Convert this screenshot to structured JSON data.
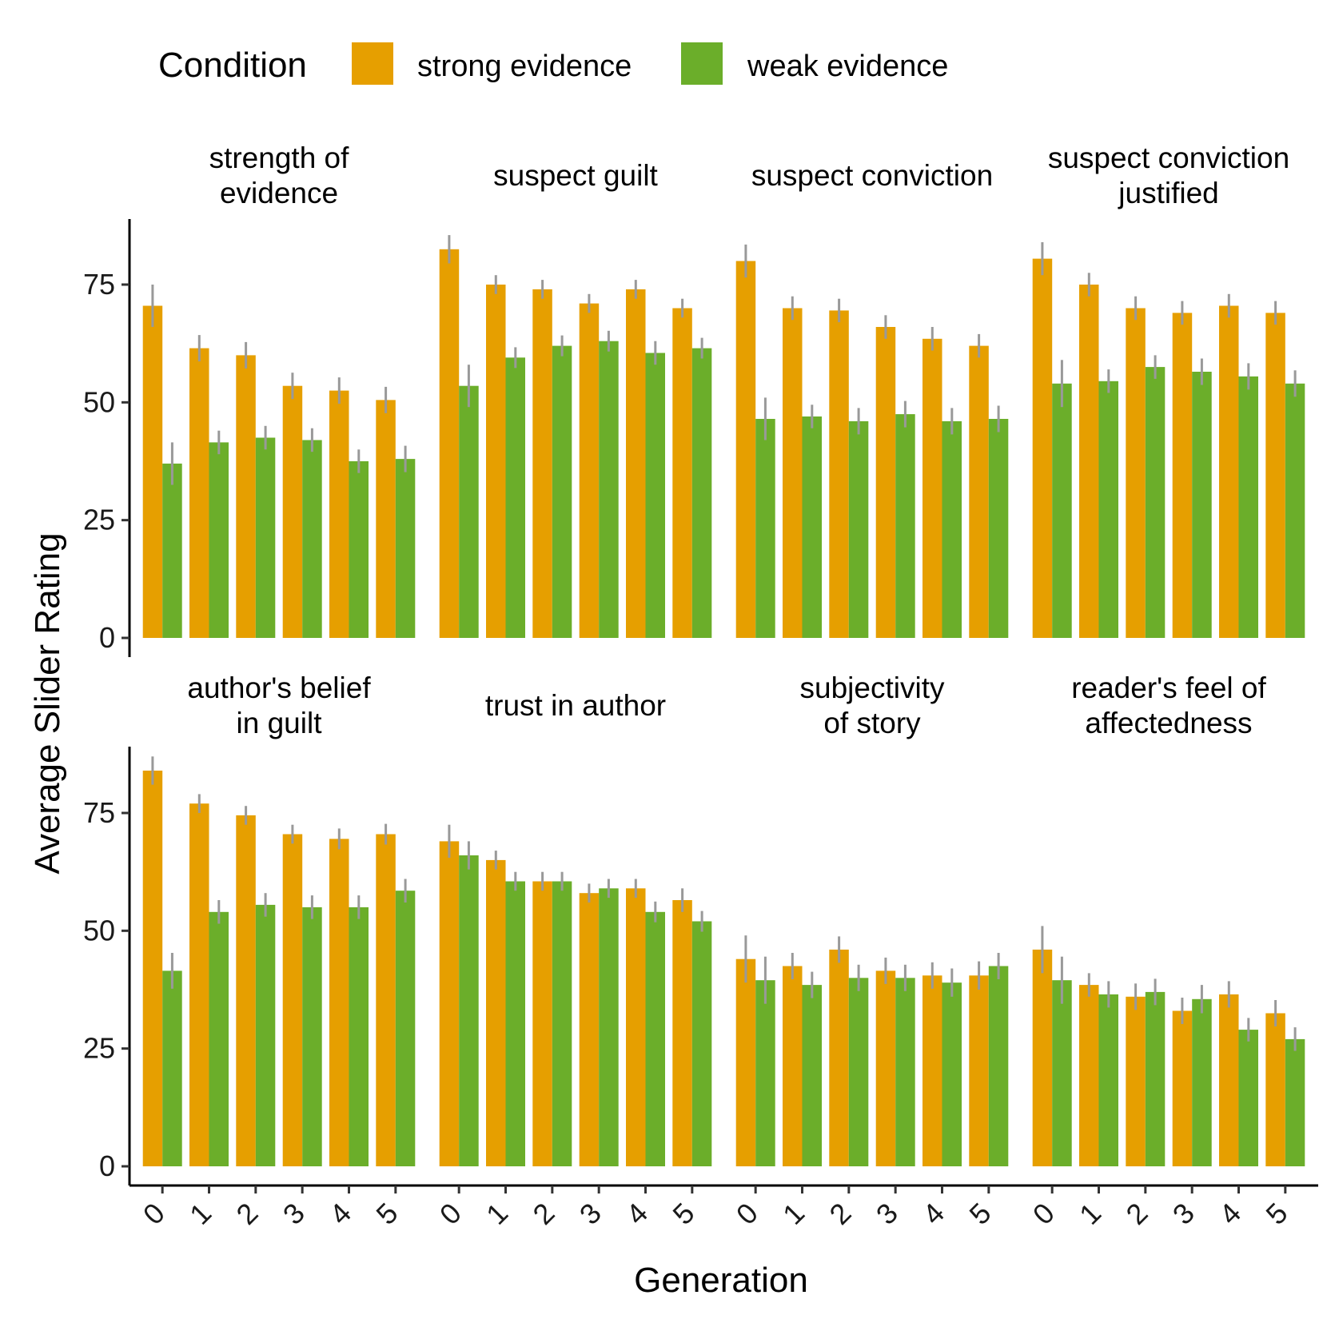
{
  "legend": {
    "title": "Condition",
    "items": [
      {
        "label": "strong evidence",
        "color": "#E69F00"
      },
      {
        "label": "weak evidence",
        "color": "#6BAE2A"
      }
    ]
  },
  "axes": {
    "ylabel": "Average Slider Rating",
    "xlabel": "Generation",
    "yticks": [
      "0",
      "25",
      "50",
      "75"
    ],
    "xticks": [
      "0",
      "1",
      "2",
      "3",
      "4",
      "5"
    ]
  },
  "chart_data": {
    "type": "bar",
    "layout": "facet grid, 2 rows x 4 columns",
    "grid": false,
    "legend_position": "top",
    "errorbar_color": "#999999",
    "ylim": [
      0,
      90
    ],
    "categories": [
      "0",
      "1",
      "2",
      "3",
      "4",
      "5"
    ],
    "panels": [
      {
        "title": [
          "strength of",
          "evidence"
        ],
        "series": [
          {
            "name": "strong evidence",
            "values": [
              70.5,
              61.5,
              60,
              53.5,
              52.5,
              50.5
            ],
            "err": [
              4.5,
              2.8,
              2.8,
              2.8,
              2.8,
              2.8
            ]
          },
          {
            "name": "weak evidence",
            "values": [
              37,
              41.5,
              42.5,
              42,
              37.5,
              38
            ],
            "err": [
              4.5,
              2.5,
              2.5,
              2.5,
              2.5,
              2.8
            ]
          }
        ]
      },
      {
        "title": [
          "suspect guilt"
        ],
        "series": [
          {
            "name": "strong evidence",
            "values": [
              82.5,
              75,
              74,
              71,
              74,
              70
            ],
            "err": [
              3,
              2,
              2,
              2,
              2,
              2
            ]
          },
          {
            "name": "weak evidence",
            "values": [
              53.5,
              59.5,
              62,
              63,
              60.5,
              61.5
            ],
            "err": [
              4.5,
              2.2,
              2.2,
              2.2,
              2.5,
              2.2
            ]
          }
        ]
      },
      {
        "title": [
          "suspect conviction"
        ],
        "series": [
          {
            "name": "strong evidence",
            "values": [
              80,
              70,
              69.5,
              66,
              63.5,
              62
            ],
            "err": [
              3.5,
              2.5,
              2.5,
              2.5,
              2.5,
              2.5
            ]
          },
          {
            "name": "weak evidence",
            "values": [
              46.5,
              47,
              46,
              47.5,
              46,
              46.5
            ],
            "err": [
              4.5,
              2.5,
              2.8,
              2.8,
              2.8,
              2.8
            ]
          }
        ]
      },
      {
        "title": [
          "suspect conviction",
          "justified"
        ],
        "series": [
          {
            "name": "strong evidence",
            "values": [
              80.5,
              75,
              70,
              69,
              70.5,
              69
            ],
            "err": [
              3.5,
              2.5,
              2.5,
              2.5,
              2.5,
              2.5
            ]
          },
          {
            "name": "weak evidence",
            "values": [
              54,
              54.5,
              57.5,
              56.5,
              55.5,
              54
            ],
            "err": [
              5,
              2.5,
              2.5,
              2.8,
              2.8,
              2.8
            ]
          }
        ]
      },
      {
        "title": [
          "author's belief",
          "in guilt"
        ],
        "series": [
          {
            "name": "strong evidence",
            "values": [
              84,
              77,
              74.5,
              70.5,
              69.5,
              70.5
            ],
            "err": [
              3,
              2,
              2,
              2,
              2.2,
              2.2
            ]
          },
          {
            "name": "weak evidence",
            "values": [
              41.5,
              54,
              55.5,
              55,
              55,
              58.5
            ],
            "err": [
              3.8,
              2.5,
              2.5,
              2.5,
              2.5,
              2.5
            ]
          }
        ]
      },
      {
        "title": [
          "trust in author"
        ],
        "series": [
          {
            "name": "strong evidence",
            "values": [
              69,
              65,
              60.5,
              58,
              59,
              56.5
            ],
            "err": [
              3.5,
              2,
              2,
              2,
              2,
              2.5
            ]
          },
          {
            "name": "weak evidence",
            "values": [
              66,
              60.5,
              60.5,
              59,
              54,
              52
            ],
            "err": [
              3,
              2,
              2,
              2,
              2.2,
              2.2
            ]
          }
        ]
      },
      {
        "title": [
          "subjectivity",
          "of story"
        ],
        "series": [
          {
            "name": "strong evidence",
            "values": [
              44,
              42.5,
              46,
              41.5,
              40.5,
              40.5
            ],
            "err": [
              5,
              2.8,
              2.8,
              2.8,
              2.8,
              3
            ]
          },
          {
            "name": "weak evidence",
            "values": [
              39.5,
              38.5,
              40,
              40,
              39,
              42.5
            ],
            "err": [
              5,
              2.8,
              2.8,
              2.8,
              3,
              2.8
            ]
          }
        ]
      },
      {
        "title": [
          "reader's feel of",
          "affectedness"
        ],
        "series": [
          {
            "name": "strong evidence",
            "values": [
              46,
              38.5,
              36,
              33,
              36.5,
              32.5
            ],
            "err": [
              5,
              2.5,
              2.8,
              2.8,
              2.8,
              2.8
            ]
          },
          {
            "name": "weak evidence",
            "values": [
              39.5,
              36.5,
              37,
              35.5,
              29,
              27
            ],
            "err": [
              5,
              2.8,
              2.8,
              3,
              2.5,
              2.5
            ]
          }
        ]
      }
    ]
  }
}
